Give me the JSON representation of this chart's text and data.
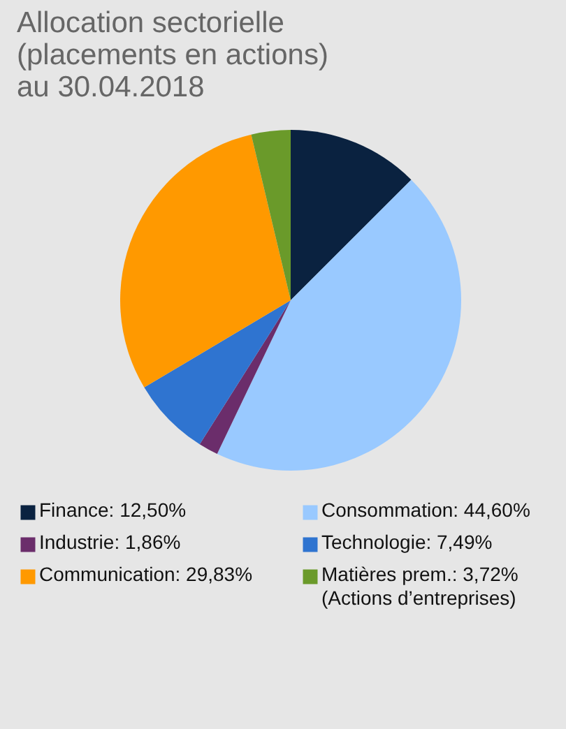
{
  "chart_data": {
    "type": "pie",
    "title": "Allocation sectorielle\n(placements en actions)\nau 30.04.2018",
    "categories": [
      "Finance: 12,50%",
      "Consommation: 44,60%",
      "Industrie: 1,86%",
      "Technologie: 7,49%",
      "Communication: 29,83%",
      "Matières prem.: 3,72%\n(Actions d’entreprises)"
    ],
    "values": [
      12.5,
      44.6,
      1.86,
      7.49,
      29.83,
      3.72
    ],
    "colors": [
      "#0a2240",
      "#99c9ff",
      "#6b2d6b",
      "#2f74d0",
      "#ff9900",
      "#6a9a2a"
    ],
    "legend": "bottom"
  }
}
